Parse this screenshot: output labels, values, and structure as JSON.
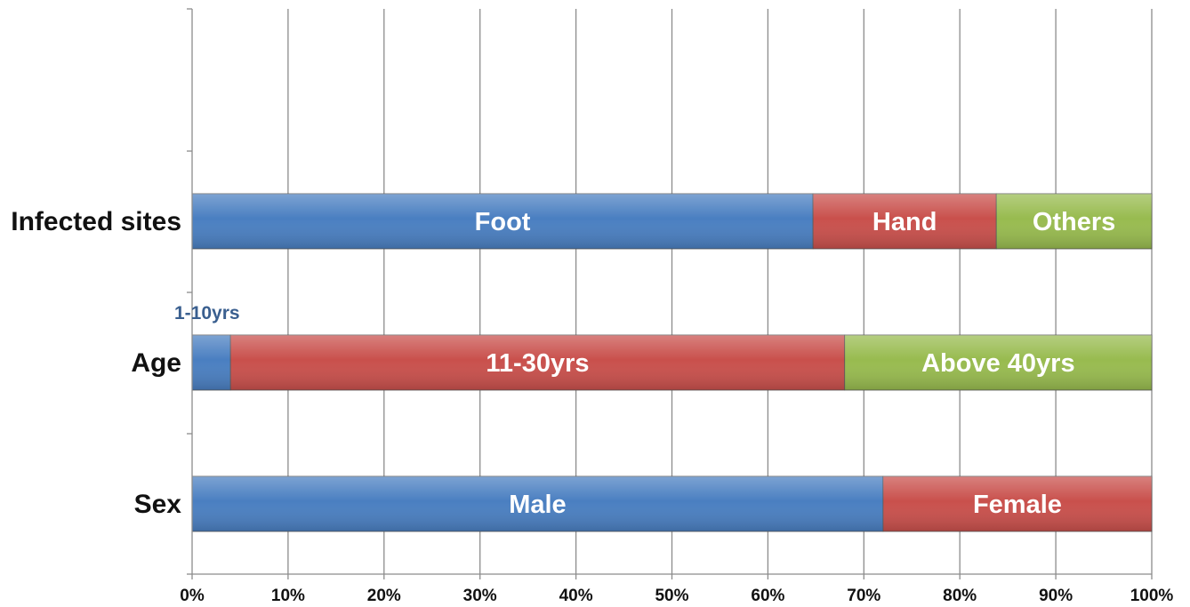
{
  "chart_data": {
    "type": "bar",
    "orientation": "horizontal",
    "stacking": "percent",
    "title": "",
    "xlabel": "",
    "ylabel": "",
    "xlim": [
      0,
      100
    ],
    "x_ticks": [
      "0%",
      "10%",
      "20%",
      "30%",
      "40%",
      "50%",
      "60%",
      "70%",
      "80%",
      "90%",
      "100%"
    ],
    "grid": "vertical",
    "legend": "none",
    "categories": [
      "Infected sites",
      "Age",
      "Sex"
    ],
    "bars": [
      {
        "category": "Infected sites",
        "segments": [
          {
            "label": "Foot",
            "value": 64.7,
            "color": "#4a7fc1"
          },
          {
            "label": "Hand",
            "value": 19.1,
            "color": "#c9504c"
          },
          {
            "label": "Others",
            "value": 16.2,
            "color": "#98bb4f"
          }
        ]
      },
      {
        "category": "Age",
        "segments": [
          {
            "label": "1-10yrs",
            "value": 4.0,
            "color": "#4a7fc1",
            "label_position": "outside-above"
          },
          {
            "label": "11-30yrs",
            "value": 64.0,
            "color": "#c9504c"
          },
          {
            "label": "Above 40yrs",
            "value": 32.0,
            "color": "#98bb4f"
          }
        ]
      },
      {
        "category": "Sex",
        "segments": [
          {
            "label": "Male",
            "value": 72.0,
            "color": "#4a7fc1"
          },
          {
            "label": "Female",
            "value": 28.0,
            "color": "#c9504c"
          }
        ]
      }
    ]
  }
}
